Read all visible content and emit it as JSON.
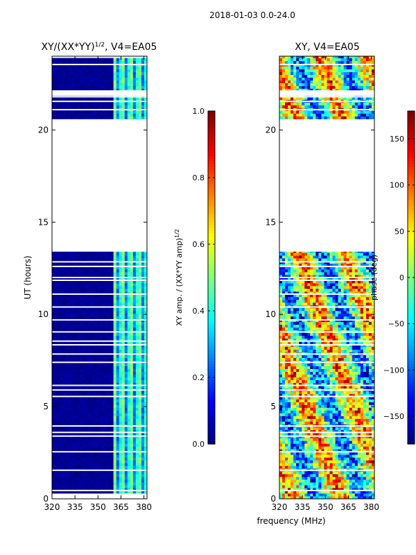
{
  "chart_data": [
    {
      "type": "heatmap",
      "suptitle": "2018-01-03 0.0-24.0",
      "title": "XY/(XX*YY)",
      "title_power": "1/2",
      "title_suffix": ", V4=EA05",
      "xlabel": "",
      "ylabel": "UT (hours)",
      "xlim": [
        320,
        382
      ],
      "ylim": [
        0,
        24
      ],
      "x_ticks": [
        320,
        335,
        350,
        365,
        380
      ],
      "y_ticks": [
        0,
        5,
        10,
        15,
        20
      ],
      "colorbar": {
        "label": "XY amp. / (XX*YY amp)",
        "label_power": "1/2",
        "range": [
          0.0,
          1.0
        ],
        "ticks": [
          "0.0",
          "0.2",
          "0.4",
          "0.6",
          "0.8",
          "1.0"
        ],
        "colormap": "jet"
      },
      "data_regions": [
        {
          "ut_start": 0.3,
          "ut_end": 13.4
        },
        {
          "ut_start": 20.6,
          "ut_end": 23.9
        }
      ],
      "notes": "Low amplitude (~0.0) below 360 MHz; moderate amplitude (~0.3-0.5) above 360 MHz"
    },
    {
      "type": "heatmap",
      "title": "XY, V4=EA05",
      "xlabel": "frequency (MHz)",
      "ylabel": "",
      "xlim": [
        320,
        382
      ],
      "ylim": [
        0,
        24
      ],
      "x_ticks": [
        320,
        335,
        350,
        365,
        380
      ],
      "y_ticks": [
        0,
        5,
        10,
        15,
        20
      ],
      "colorbar": {
        "label": "phase (deg)",
        "range": [
          -180,
          180
        ],
        "ticks": [
          "150",
          "100",
          "50",
          "0",
          "−50",
          "−100",
          "−150"
        ],
        "tick_values": [
          150,
          100,
          50,
          0,
          -50,
          -100,
          -150
        ],
        "colormap": "jet"
      },
      "data_regions": [
        {
          "ut_start": 0.0,
          "ut_end": 13.4
        },
        {
          "ut_start": 20.6,
          "ut_end": 24.0
        }
      ],
      "notes": "Phase values scattered across full range -180 to 180 deg"
    }
  ]
}
